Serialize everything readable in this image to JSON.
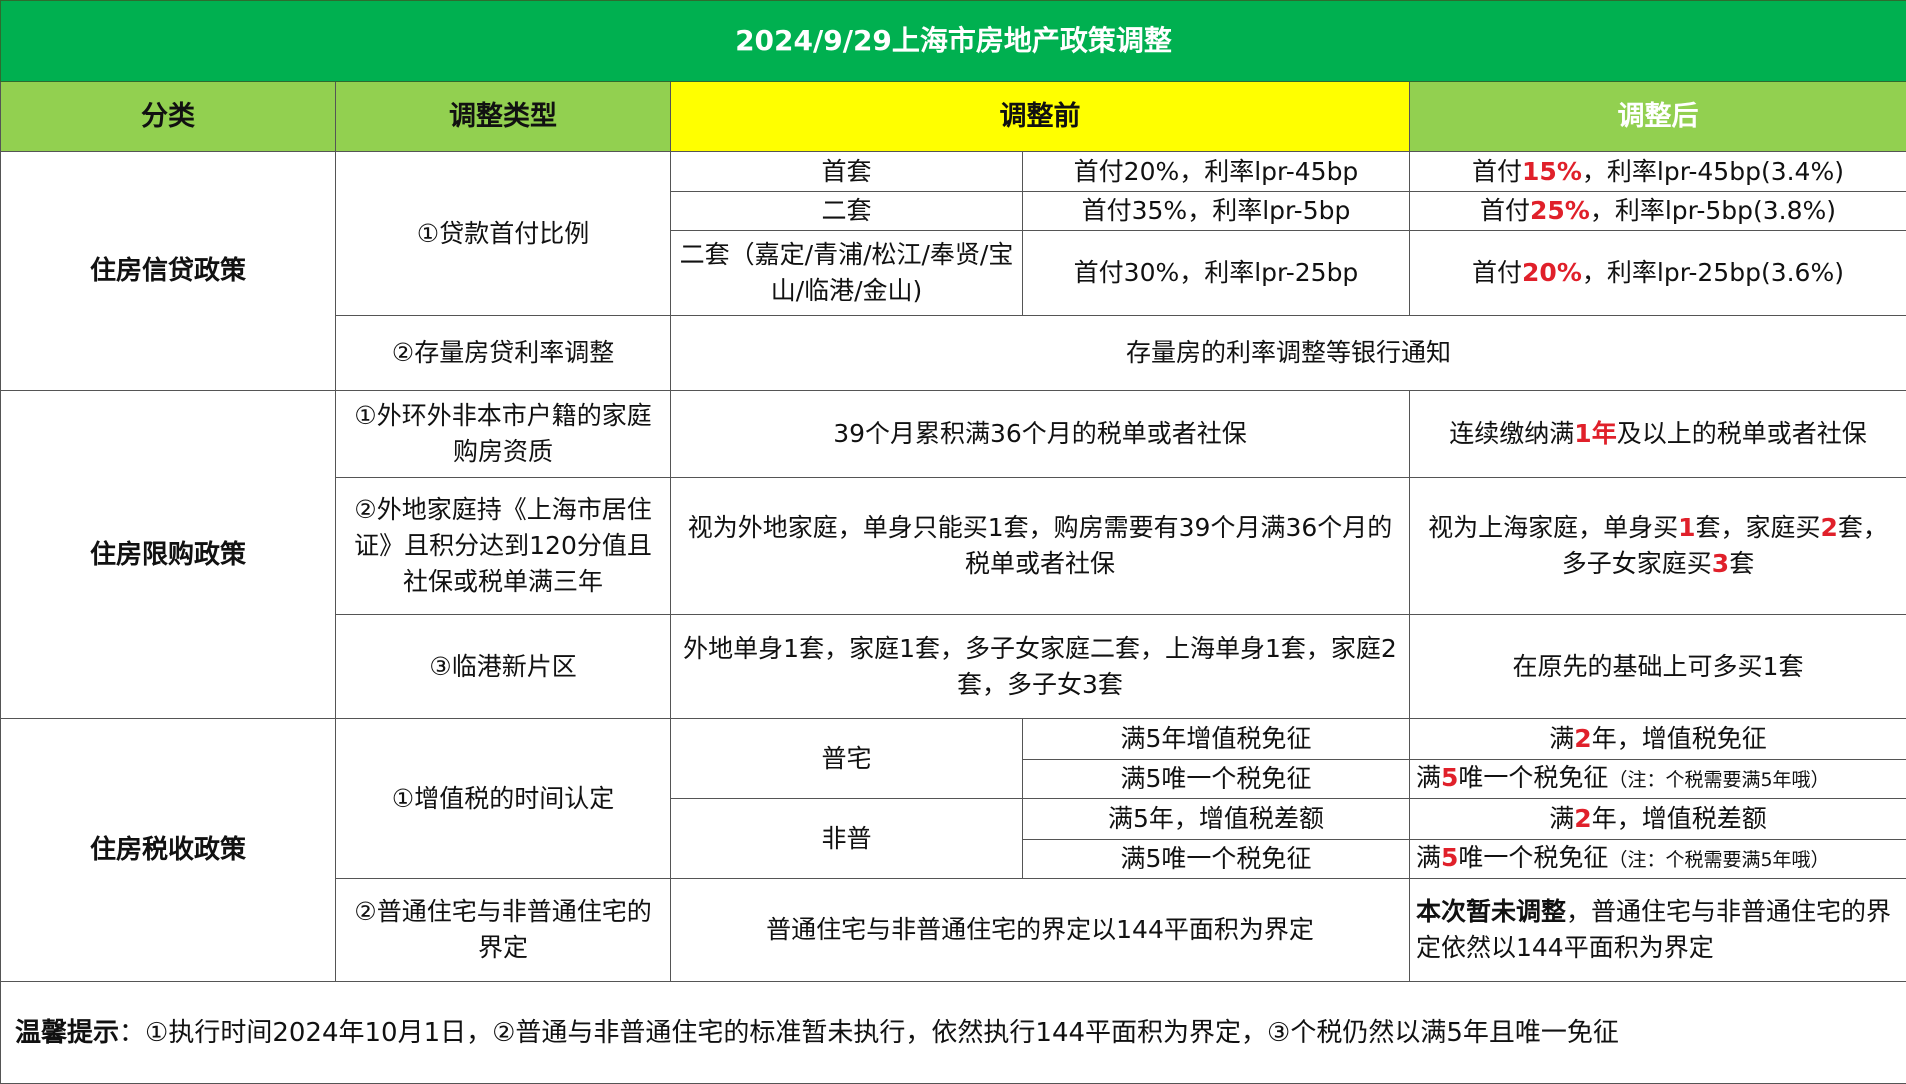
{
  "title": "2024/9/29上海市房地产政策调整",
  "colors": {
    "title_bg": "#00b050",
    "header_bg": "#92d050",
    "before_header_bg": "#ffff00",
    "highlight": "#e0202a"
  },
  "headers": {
    "category": "分类",
    "type": "调整类型",
    "before": "调整前",
    "after": "调整后"
  },
  "credit": {
    "category": "住房信贷政策",
    "down_payment": {
      "type": "①贷款首付比例",
      "rows": [
        {
          "sub": "首套",
          "before": "首付20%，利率lpr-45bp",
          "after": [
            {
              "t": "首付"
            },
            {
              "t": "15%",
              "red": true
            },
            {
              "t": "，利率lpr-45bp(3.4%)"
            }
          ]
        },
        {
          "sub": "二套",
          "before": "首付35%，利率lpr-5bp",
          "after": [
            {
              "t": "首付"
            },
            {
              "t": "25%",
              "red": true
            },
            {
              "t": "，利率lpr-5bp(3.8%)"
            }
          ]
        },
        {
          "sub": "二套（嘉定/青浦/松江/奉贤/宝山/临港/金山)",
          "before": "首付30%，利率lpr-25bp",
          "after": [
            {
              "t": "首付"
            },
            {
              "t": "20%",
              "red": true
            },
            {
              "t": "，利率lpr-25bp(3.6%)"
            }
          ]
        }
      ]
    },
    "existing_rate": {
      "type": "②存量房贷利率调整",
      "value": "存量房的利率调整等银行通知"
    }
  },
  "restriction": {
    "category": "住房限购政策",
    "rows": [
      {
        "type": "①外环外非本市户籍的家庭购房资质",
        "before": "39个月累积满36个月的税单或者社保",
        "after": [
          {
            "t": "连续缴纳满"
          },
          {
            "t": "1年",
            "red": true
          },
          {
            "t": "及以上的税单或者社保"
          }
        ]
      },
      {
        "type": "②外地家庭持《上海市居住证》且积分达到120分值且社保或税单满三年",
        "before": "视为外地家庭，单身只能买1套，购房需要有39个月满36个月的税单或者社保",
        "after": [
          {
            "t": "视为上海家庭，单身买"
          },
          {
            "t": "1",
            "red": true
          },
          {
            "t": "套，家庭买"
          },
          {
            "t": "2",
            "red": true
          },
          {
            "t": "套，多子女家庭买"
          },
          {
            "t": "3",
            "red": true
          },
          {
            "t": "套"
          }
        ]
      },
      {
        "type": "③临港新片区",
        "before": "外地单身1套，家庭1套，多子女家庭二套，上海单身1套，家庭2套，多子女3套",
        "after": [
          {
            "t": "在原先的基础上可多买1套"
          }
        ]
      }
    ]
  },
  "tax": {
    "category": "住房税收政策",
    "vat": {
      "type": "①增值税的时间认定",
      "groups": [
        {
          "label": "普宅",
          "rows": [
            {
              "before": "满5年增值税免征",
              "after": [
                {
                  "t": "满"
                },
                {
                  "t": "2",
                  "red": true
                },
                {
                  "t": "年，增值税免征"
                }
              ]
            },
            {
              "before": "满5唯一个税免征",
              "after": [
                {
                  "t": "满"
                },
                {
                  "t": "5",
                  "red": true
                },
                {
                  "t": "唯一个税免征"
                },
                {
                  "t": "（注：个税需要满5年哦）",
                  "note": true
                }
              ]
            }
          ]
        },
        {
          "label": "非普",
          "rows": [
            {
              "before": "满5年，增值税差额",
              "after": [
                {
                  "t": "满"
                },
                {
                  "t": "2",
                  "red": true
                },
                {
                  "t": "年，增值税差额"
                }
              ]
            },
            {
              "before": "满5唯一个税免征",
              "after": [
                {
                  "t": "满"
                },
                {
                  "t": "5",
                  "red": true
                },
                {
                  "t": "唯一个税免征"
                },
                {
                  "t": "（注：个税需要满5年哦）",
                  "note": true
                }
              ]
            }
          ]
        }
      ]
    },
    "definition": {
      "type": "②普通住宅与非普通住宅的界定",
      "before": "普通住宅与非普通住宅的界定以144平面积为界定",
      "after": [
        {
          "t": "本次暂未调整",
          "bold": true
        },
        {
          "t": "，普通住宅与非普通住宅的界定依然以144平面积为界定"
        }
      ]
    }
  },
  "footer": [
    {
      "t": "温馨提示",
      "bold": true
    },
    {
      "t": "：①执行时间2024年10月1日，②普通与非普通住宅的标准暂未执行，依然执行144平面积为界定，③个税仍然以满5年且唯一免征"
    }
  ]
}
